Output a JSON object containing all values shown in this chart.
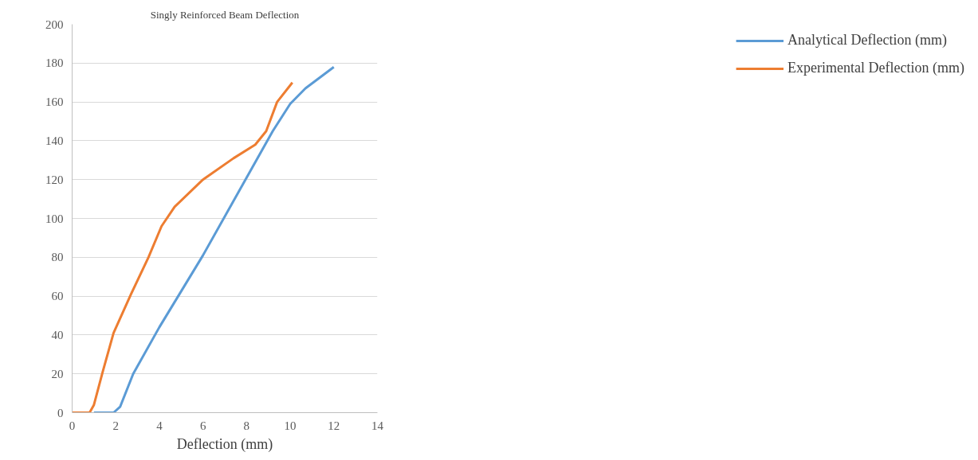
{
  "chart_data": {
    "type": "line",
    "title": "Singly Reinforced Beam Deflection",
    "xlabel": "Deflection (mm)",
    "xlim": [
      0,
      14
    ],
    "xticks": [
      0,
      2,
      4,
      6,
      8,
      10,
      12,
      14
    ],
    "ylim": [
      0,
      200
    ],
    "yticks": [
      0,
      20,
      40,
      60,
      80,
      100,
      120,
      140,
      160,
      180,
      200
    ],
    "grid": "y",
    "legend": "right",
    "line_style": "solid",
    "marker": "none",
    "series": [
      {
        "name": "Analytical Deflection (mm)",
        "color": "#5b9bd5",
        "x": [
          1.0,
          1.9,
          2.2,
          2.8,
          4.0,
          6.0,
          8.0,
          9.2,
          10.0,
          10.7,
          12.0
        ],
        "values": [
          0,
          0,
          3,
          20,
          44,
          81,
          121,
          145,
          159,
          167,
          178
        ]
      },
      {
        "name": "Experimental Deflection (mm)",
        "color": "#ed7d31",
        "x": [
          0,
          0.8,
          1.0,
          1.4,
          1.9,
          2.7,
          3.5,
          4.1,
          4.7,
          6.0,
          7.4,
          8.4,
          8.9,
          9.4,
          10.1
        ],
        "values": [
          0,
          0,
          4,
          21,
          41,
          61,
          80,
          96,
          106,
          120,
          131,
          138,
          145,
          160,
          170
        ]
      }
    ]
  }
}
